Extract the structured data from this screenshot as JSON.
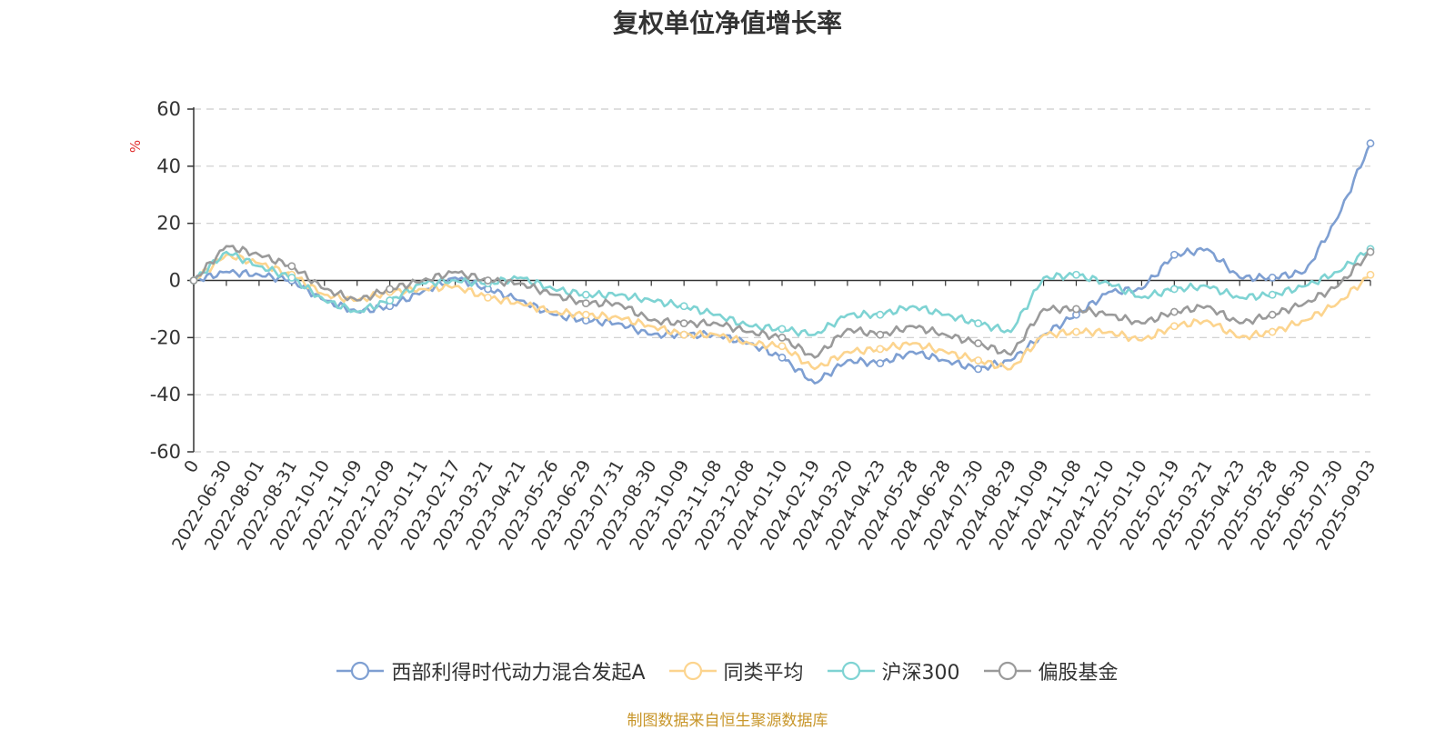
{
  "chart_data": {
    "type": "line",
    "title": "复权单位净值增长率",
    "ylabel": "%",
    "ylim": [
      -60,
      60
    ],
    "yticks": [
      60,
      40,
      20,
      0,
      -20,
      -40,
      -60
    ],
    "grid": true,
    "legend_position": "bottom",
    "x_categories": [
      "0",
      "2022-06-30",
      "2022-08-01",
      "2022-08-31",
      "2022-10-10",
      "2022-11-09",
      "2022-12-09",
      "2023-01-11",
      "2023-02-17",
      "2023-03-21",
      "2023-04-21",
      "2023-05-26",
      "2023-06-29",
      "2023-07-31",
      "2023-08-30",
      "2023-10-09",
      "2023-11-08",
      "2023-12-08",
      "2024-01-10",
      "2024-02-19",
      "2024-03-20",
      "2024-04-23",
      "2024-05-28",
      "2024-06-28",
      "2024-07-30",
      "2024-08-29",
      "2024-10-09",
      "2024-11-08",
      "2024-12-10",
      "2025-01-10",
      "2025-02-19",
      "2025-03-21",
      "2025-04-23",
      "2025-05-28",
      "2025-06-30",
      "2025-07-30",
      "2025-09-03"
    ],
    "series": [
      {
        "name": "西部利得时代动力混合发起A",
        "color": "#7e9fd2",
        "values": [
          0,
          3,
          2,
          0,
          -7,
          -11,
          -9,
          -4,
          1,
          -3,
          -7,
          -12,
          -14,
          -15,
          -19,
          -19,
          -19,
          -22,
          -27,
          -36,
          -28,
          -29,
          -25,
          -28,
          -31,
          -28,
          -19,
          -12,
          -4,
          -3,
          9,
          11,
          1,
          1,
          3,
          22,
          48
        ]
      },
      {
        "name": "同类平均",
        "color": "#fcd48e",
        "values": [
          0,
          9,
          6,
          2,
          -5,
          -7,
          -4,
          -3,
          -2,
          -6,
          -8,
          -11,
          -12,
          -13,
          -16,
          -19,
          -19,
          -22,
          -23,
          -31,
          -25,
          -24,
          -22,
          -25,
          -28,
          -31,
          -19,
          -18,
          -18,
          -21,
          -16,
          -14,
          -20,
          -18,
          -14,
          -8,
          2
        ]
      },
      {
        "name": "沪深300",
        "color": "#7ed3d3",
        "values": [
          0,
          10,
          5,
          1,
          -7,
          -11,
          -7,
          -1,
          0,
          -1,
          1,
          -3,
          -5,
          -5,
          -7,
          -9,
          -12,
          -16,
          -17,
          -19,
          -12,
          -12,
          -9,
          -12,
          -15,
          -18,
          1,
          2,
          -1,
          -6,
          -3,
          -2,
          -6,
          -5,
          -2,
          3,
          11
        ]
      },
      {
        "name": "偏股基金",
        "color": "#9a9a9a",
        "values": [
          0,
          12,
          9,
          5,
          -3,
          -7,
          -3,
          0,
          3,
          0,
          -1,
          -5,
          -8,
          -8,
          -14,
          -15,
          -15,
          -18,
          -20,
          -27,
          -17,
          -19,
          -16,
          -19,
          -22,
          -26,
          -10,
          -10,
          -12,
          -15,
          -11,
          -9,
          -15,
          -12,
          -8,
          -2,
          10
        ]
      }
    ]
  },
  "source_note": "制图数据来自恒生聚源数据库"
}
